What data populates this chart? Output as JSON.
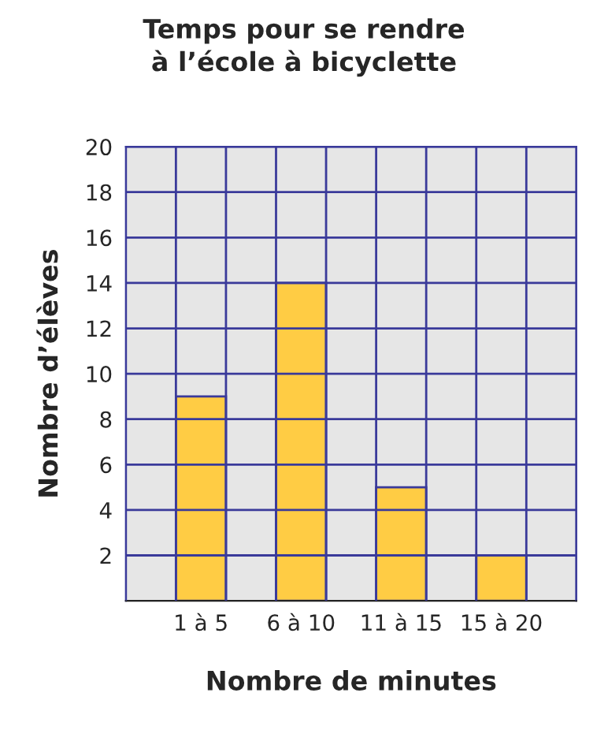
{
  "chart_data": {
    "type": "bar",
    "title": "Temps pour se rendre\nà l’école à bicyclette",
    "xlabel": "Nombre de minutes",
    "ylabel": "Nombre d’élèves",
    "categories": [
      null,
      "1 à 5",
      null,
      "6 à 10",
      null,
      "11 à 15",
      null,
      "15 à 20",
      null
    ],
    "values": [
      null,
      9,
      null,
      14,
      null,
      5,
      null,
      2,
      null
    ],
    "color": "#ffcc44",
    "ylim": [
      0,
      20
    ],
    "yticks": [
      2,
      4,
      6,
      8,
      10,
      12,
      14,
      16,
      18,
      20
    ],
    "grid": true
  }
}
